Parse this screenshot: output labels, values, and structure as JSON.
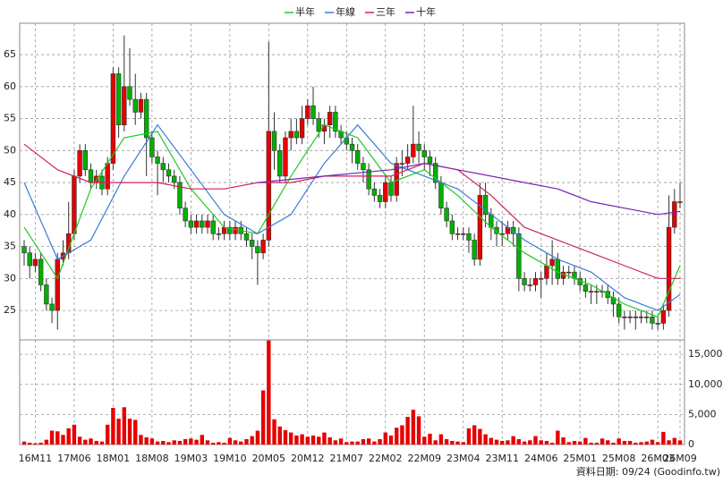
{
  "chart_data": {
    "type": "candlestick",
    "footer": "資料日期: 09/24 (Goodinfo.tw)",
    "categories": [
      null,
      null,
      "16M11",
      null,
      null,
      null,
      null,
      null,
      null,
      "17M06",
      null,
      null,
      null,
      null,
      null,
      null,
      "18M01",
      null,
      null,
      null,
      null,
      null,
      null,
      "18M08",
      null,
      null,
      null,
      null,
      null,
      null,
      "19M03",
      null,
      null,
      null,
      null,
      null,
      null,
      "19M10",
      null,
      null,
      null,
      null,
      null,
      null,
      "20M05",
      null,
      null,
      null,
      null,
      null,
      null,
      "20M12",
      null,
      null,
      null,
      null,
      null,
      null,
      "21M07",
      null,
      null,
      null,
      null,
      null,
      null,
      "22M02",
      null,
      null,
      null,
      null,
      null,
      null,
      "22M09",
      null,
      null,
      null,
      null,
      null,
      null,
      "23M04",
      null,
      null,
      null,
      null,
      null,
      null,
      "23M11",
      null,
      null,
      null,
      null,
      null,
      null,
      "24M06",
      null,
      null,
      null,
      null,
      null,
      null,
      "25M01",
      null,
      null,
      null,
      null,
      null,
      null,
      "25M08",
      null,
      null,
      null,
      null,
      null,
      null,
      "26M03",
      null,
      null,
      null,
      "26M09"
    ],
    "ylim": [
      20.4,
      69.9
    ],
    "yticks": [
      25,
      30,
      35,
      40,
      45,
      50,
      55,
      60,
      65
    ],
    "grid": true,
    "up_color": "#e60000",
    "down_color": "#00b000",
    "candles": {
      "open": [
        35,
        34,
        32,
        33,
        29,
        26,
        25,
        33,
        34,
        37,
        46,
        50,
        47,
        45,
        46,
        44,
        48,
        62,
        54,
        60,
        58,
        56,
        58,
        52,
        49,
        48,
        47,
        46,
        45,
        41,
        39,
        38,
        39,
        38,
        39,
        37,
        37,
        38,
        37,
        38,
        37,
        36,
        35,
        34,
        36,
        53,
        50,
        46,
        52,
        53,
        52,
        55,
        57,
        55,
        53,
        54,
        56,
        53,
        52,
        51,
        50,
        48,
        47,
        44,
        43,
        42,
        45,
        43,
        48,
        48,
        49,
        51,
        50,
        49,
        48,
        45,
        41,
        39,
        37,
        37,
        37,
        36,
        33,
        43,
        40,
        38,
        37,
        37,
        38,
        37,
        30,
        29,
        29,
        30,
        30,
        32,
        33,
        30,
        31,
        31,
        30,
        29,
        28,
        28,
        28,
        28,
        27,
        26,
        24,
        24,
        24,
        24,
        24,
        24,
        23,
        23,
        25,
        38,
        42
      ],
      "high": [
        36,
        35,
        34,
        34,
        30,
        27,
        34,
        36,
        42,
        47,
        51,
        51,
        48,
        47,
        47,
        49,
        63,
        63,
        68,
        66,
        62,
        59,
        59,
        53,
        50,
        49,
        48,
        47,
        46,
        42,
        40,
        40,
        40,
        40,
        40,
        38,
        39,
        39,
        39,
        39,
        38,
        37,
        36,
        37,
        67,
        56,
        51,
        53,
        55,
        55,
        57,
        58,
        60,
        56,
        55,
        57,
        57,
        54,
        53,
        52,
        51,
        49,
        48,
        45,
        44,
        46,
        46,
        49,
        50,
        51,
        57,
        53,
        51,
        50,
        49,
        46,
        42,
        40,
        38,
        38,
        38,
        37,
        45,
        45,
        41,
        39,
        39,
        39,
        39,
        38,
        31,
        30,
        31,
        31,
        34,
        36,
        34,
        32,
        32,
        32,
        31,
        30,
        29,
        29,
        29,
        29,
        28,
        27,
        25,
        25,
        25,
        25,
        25,
        25,
        24,
        26,
        43,
        44,
        45
      ],
      "low": [
        32,
        30,
        31,
        28,
        25,
        23,
        22,
        32,
        33,
        36,
        45,
        46,
        44,
        44,
        43,
        43,
        47,
        52,
        53,
        57,
        54,
        55,
        46,
        48,
        43,
        45,
        45,
        44,
        40,
        38,
        37,
        37,
        37,
        37,
        36,
        36,
        36,
        36,
        36,
        36,
        35,
        33,
        29,
        33,
        35,
        47,
        45,
        45,
        50,
        51,
        51,
        54,
        54,
        52,
        51,
        52,
        52,
        51,
        50,
        48,
        47,
        45,
        43,
        42,
        41,
        41,
        42,
        42,
        46,
        47,
        48,
        48,
        47,
        46,
        44,
        40,
        38,
        36,
        36,
        36,
        34,
        32,
        32,
        38,
        36,
        35,
        35,
        36,
        35,
        28,
        28,
        28,
        28,
        27,
        29,
        29,
        29,
        29,
        30,
        29,
        28,
        27,
        26,
        26,
        27,
        26,
        24,
        23,
        22,
        23,
        22,
        23,
        23,
        22,
        22,
        22,
        24,
        37,
        41
      ],
      "close": [
        34,
        32,
        33,
        29,
        26,
        25,
        33,
        34,
        37,
        46,
        50,
        47,
        45,
        46,
        44,
        48,
        62,
        54,
        60,
        58,
        56,
        58,
        52,
        49,
        48,
        47,
        46,
        45,
        41,
        39,
        38,
        39,
        38,
        39,
        37,
        37,
        38,
        37,
        38,
        37,
        36,
        35,
        34,
        36,
        53,
        50,
        46,
        52,
        53,
        52,
        55,
        57,
        55,
        53,
        54,
        56,
        53,
        52,
        51,
        50,
        48,
        47,
        44,
        43,
        42,
        45,
        43,
        48,
        48,
        49,
        51,
        50,
        49,
        48,
        45,
        41,
        39,
        37,
        37,
        37,
        36,
        33,
        43,
        40,
        38,
        37,
        37,
        38,
        37,
        30,
        29,
        29,
        30,
        30,
        32,
        33,
        30,
        31,
        31,
        30,
        29,
        28,
        28,
        28,
        28,
        27,
        26,
        24,
        24,
        24,
        24,
        24,
        24,
        23,
        23,
        25,
        38,
        42,
        42
      ]
    },
    "series": [
      {
        "name": "半年",
        "color": "#22c822",
        "x": [
          0,
          6,
          12,
          18,
          24,
          30,
          36,
          42,
          48,
          54,
          60,
          66,
          72,
          78,
          84,
          90,
          96,
          102,
          108,
          114,
          118
        ],
        "values": [
          38,
          30,
          44,
          52,
          53,
          44,
          38,
          37,
          46,
          54,
          52,
          45,
          47,
          43,
          38,
          34,
          31,
          29,
          26,
          24,
          32
        ]
      },
      {
        "name": "年線",
        "color": "#3a7bd5",
        "x": [
          0,
          6,
          12,
          18,
          24,
          30,
          36,
          42,
          48,
          54,
          60,
          66,
          72,
          78,
          84,
          90,
          96,
          102,
          108,
          114,
          118
        ],
        "values": [
          45,
          33,
          36,
          46,
          54,
          47,
          40,
          37,
          40,
          48,
          54,
          48,
          46,
          44,
          40,
          36,
          33,
          31,
          27,
          25,
          27.5
        ]
      },
      {
        "name": "三年",
        "color": "#d0205a",
        "x": [
          0,
          6,
          12,
          18,
          24,
          30,
          36,
          42,
          48,
          54,
          60,
          66,
          72,
          78,
          84,
          90,
          96,
          102,
          108,
          114,
          118
        ],
        "values": [
          51,
          47,
          45,
          45,
          45,
          44,
          44,
          45,
          45,
          46,
          46,
          46,
          48,
          47,
          43,
          38,
          36,
          34,
          32,
          30,
          30
        ]
      },
      {
        "name": "十年",
        "color": "#7a22b0",
        "x": [
          42,
          48,
          54,
          60,
          66,
          72,
          78,
          84,
          90,
          96,
          102,
          108,
          114,
          118
        ],
        "values": [
          45,
          45.5,
          46,
          46.5,
          47,
          48,
          47,
          46,
          45,
          44,
          42,
          41,
          40,
          40.5
        ]
      }
    ],
    "volume": {
      "color": "#e60000",
      "ylim": [
        0,
        17400
      ],
      "yticks": [
        0,
        {
          "value": 5000,
          "label": "5,000"
        },
        {
          "value": 10000,
          "label": "10,000"
        },
        {
          "value": 15000,
          "label": "15,000"
        }
      ],
      "values": [
        500,
        300,
        200,
        300,
        800,
        2300,
        2200,
        1600,
        2700,
        3300,
        1300,
        800,
        1000,
        600,
        500,
        3300,
        6100,
        4300,
        6200,
        4300,
        4100,
        1600,
        1200,
        1000,
        500,
        600,
        400,
        700,
        600,
        900,
        1000,
        800,
        1600,
        700,
        300,
        400,
        300,
        1100,
        700,
        500,
        900,
        1400,
        2300,
        9000,
        17300,
        4200,
        3000,
        2400,
        2000,
        1500,
        1700,
        1300,
        1500,
        1300,
        2000,
        1200,
        700,
        1000,
        400,
        500,
        500,
        900,
        1000,
        500,
        900,
        2000,
        1500,
        2800,
        3200,
        4600,
        5800,
        4700,
        1300,
        1800,
        700,
        1700,
        900,
        600,
        500,
        400,
        2700,
        3200,
        2600,
        1700,
        1100,
        800,
        600,
        700,
        1400,
        900,
        500,
        700,
        1400,
        700,
        600,
        300,
        2300,
        1200,
        400,
        600,
        500,
        1100,
        300,
        300,
        1000,
        700,
        300,
        1000,
        600,
        600,
        300,
        400,
        500,
        800,
        400,
        2100,
        700,
        1100,
        700
      ]
    }
  }
}
